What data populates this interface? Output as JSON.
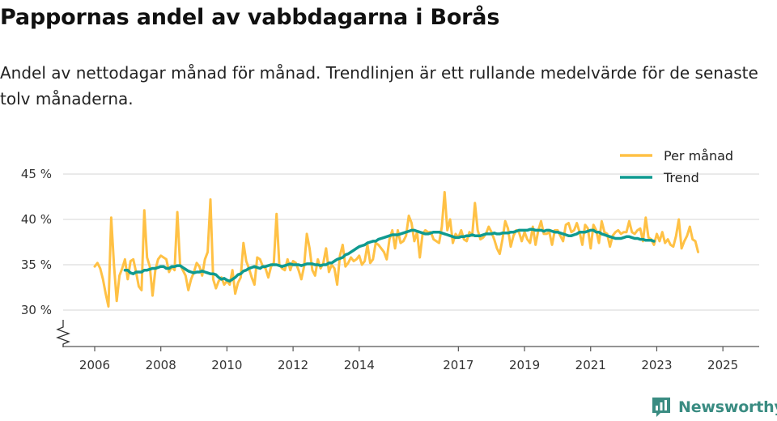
{
  "chart_data": {
    "type": "line",
    "title": "Pappornas andel av vabbdagarna i Borås",
    "subtitle": "Andel av nettodagar månad för månad. Trendlinjen är ett rullande medelvärde för de senaste tolv månaderna.",
    "x_ticks": [
      "2006",
      "2008",
      "2010",
      "2012",
      "2014",
      "2017",
      "2019",
      "2021",
      "2023",
      "2025"
    ],
    "y_ticks": [
      "30 %",
      "35 %",
      "40 %",
      "45 %"
    ],
    "ylim": [
      30,
      45
    ],
    "colors": {
      "monthly": "#FFC145",
      "trend": "#0F9A90",
      "grid": "#DDDDDD",
      "axis": "#555555"
    },
    "series": [
      {
        "name": "Per månad",
        "start": "2006-01",
        "values": [
          34.8,
          35.2,
          34.6,
          33.4,
          31.8,
          30.4,
          40.2,
          35.0,
          31.0,
          33.8,
          34.6,
          35.6,
          33.4,
          35.4,
          35.6,
          34.2,
          32.6,
          32.2,
          41.0,
          35.8,
          34.8,
          31.6,
          34.4,
          35.6,
          36.0,
          35.8,
          35.6,
          34.2,
          34.8,
          34.4,
          40.8,
          35.0,
          34.4,
          33.8,
          32.2,
          33.4,
          34.2,
          35.2,
          34.8,
          33.8,
          35.6,
          36.4,
          42.2,
          33.4,
          32.4,
          33.2,
          33.6,
          32.8,
          33.2,
          32.8,
          34.4,
          31.8,
          33.0,
          33.6,
          37.4,
          35.4,
          34.6,
          33.6,
          32.8,
          35.8,
          35.6,
          34.8,
          34.6,
          33.6,
          34.8,
          35.2,
          40.6,
          35.0,
          34.6,
          34.4,
          35.6,
          34.4,
          35.4,
          35.2,
          34.4,
          33.4,
          34.8,
          38.4,
          36.8,
          34.4,
          33.8,
          35.6,
          34.6,
          35.2,
          36.8,
          34.2,
          35.0,
          34.6,
          32.8,
          36.0,
          37.2,
          34.8,
          35.2,
          35.8,
          35.4,
          35.6,
          36.0,
          35.0,
          35.4,
          37.2,
          35.2,
          35.6,
          37.4,
          37.2,
          36.8,
          36.4,
          35.6,
          37.8,
          38.8,
          36.8,
          38.8,
          37.4,
          37.6,
          38.2,
          40.4,
          39.6,
          37.6,
          38.6,
          35.8,
          38.4,
          38.8,
          38.6,
          38.6,
          37.8,
          37.6,
          37.4,
          39.2,
          43.0,
          38.8,
          40.0,
          37.4,
          38.4,
          38.0,
          38.8,
          37.8,
          37.6,
          38.6,
          38.2,
          41.8,
          38.8,
          37.8,
          38.0,
          38.4,
          39.2,
          38.6,
          37.8,
          36.8,
          36.2,
          37.8,
          39.8,
          39.0,
          37.0,
          38.2,
          38.8,
          38.6,
          37.6,
          38.6,
          37.8,
          37.4,
          39.2,
          37.2,
          38.8,
          39.8,
          38.4,
          38.4,
          38.6,
          37.2,
          38.8,
          38.8,
          38.2,
          37.6,
          39.4,
          39.6,
          38.6,
          38.8,
          39.6,
          38.6,
          37.2,
          39.4,
          39.0,
          36.8,
          39.4,
          38.8,
          37.4,
          39.8,
          38.6,
          38.4,
          37.0,
          38.2,
          38.6,
          38.8,
          38.4,
          38.6,
          38.6,
          39.8,
          38.6,
          38.4,
          38.8,
          39.0,
          37.6,
          40.2,
          38.0,
          37.8,
          37.2,
          38.4,
          37.6,
          38.6,
          37.4,
          37.8,
          37.2,
          37.0,
          38.2,
          40.0,
          36.8,
          37.6,
          38.2,
          39.2,
          37.8,
          37.6,
          36.4
        ]
      },
      {
        "name": "Trend",
        "start": "2006-12",
        "values": [
          34.4,
          34.4,
          34.1,
          34.0,
          34.2,
          34.2,
          34.2,
          34.4,
          34.4,
          34.5,
          34.6,
          34.6,
          34.7,
          34.8,
          34.8,
          34.6,
          34.6,
          34.8,
          34.8,
          34.9,
          34.9,
          34.7,
          34.5,
          34.3,
          34.2,
          34.1,
          34.2,
          34.2,
          34.3,
          34.2,
          34.1,
          34.0,
          34.0,
          33.9,
          33.6,
          33.4,
          33.5,
          33.3,
          33.2,
          33.4,
          33.6,
          33.9,
          34.0,
          34.3,
          34.4,
          34.6,
          34.7,
          34.8,
          34.7,
          34.6,
          34.8,
          34.8,
          34.9,
          35.0,
          35.0,
          35.0,
          34.9,
          34.8,
          34.9,
          35.0,
          35.1,
          35.0,
          35.0,
          35.0,
          34.9,
          35.0,
          35.1,
          35.1,
          35.1,
          35.0,
          35.0,
          34.9,
          35.0,
          35.0,
          35.2,
          35.2,
          35.4,
          35.6,
          35.7,
          35.8,
          36.1,
          36.2,
          36.4,
          36.6,
          36.8,
          37.0,
          37.1,
          37.2,
          37.4,
          37.5,
          37.6,
          37.6,
          37.8,
          37.9,
          38.0,
          38.1,
          38.2,
          38.3,
          38.3,
          38.3,
          38.4,
          38.5,
          38.6,
          38.7,
          38.8,
          38.8,
          38.7,
          38.6,
          38.5,
          38.4,
          38.4,
          38.5,
          38.6,
          38.6,
          38.6,
          38.5,
          38.4,
          38.3,
          38.2,
          38.1,
          38.0,
          38.0,
          38.1,
          38.1,
          38.2,
          38.2,
          38.3,
          38.2,
          38.2,
          38.2,
          38.3,
          38.4,
          38.4,
          38.4,
          38.5,
          38.4,
          38.4,
          38.5,
          38.5,
          38.5,
          38.6,
          38.6,
          38.7,
          38.8,
          38.8,
          38.8,
          38.8,
          38.9,
          38.9,
          38.8,
          38.8,
          38.8,
          38.7,
          38.8,
          38.8,
          38.7,
          38.6,
          38.6,
          38.5,
          38.4,
          38.3,
          38.2,
          38.2,
          38.3,
          38.4,
          38.6,
          38.6,
          38.6,
          38.7,
          38.8,
          38.8,
          38.6,
          38.6,
          38.4,
          38.3,
          38.2,
          38.1,
          38.0,
          37.9,
          37.9,
          37.9,
          38.0,
          38.1,
          38.1,
          38.0,
          37.9,
          37.9,
          37.8,
          37.8,
          37.7,
          37.7,
          37.7,
          37.6
        ]
      }
    ]
  },
  "branding": {
    "logo_text": "Newsworthy"
  }
}
